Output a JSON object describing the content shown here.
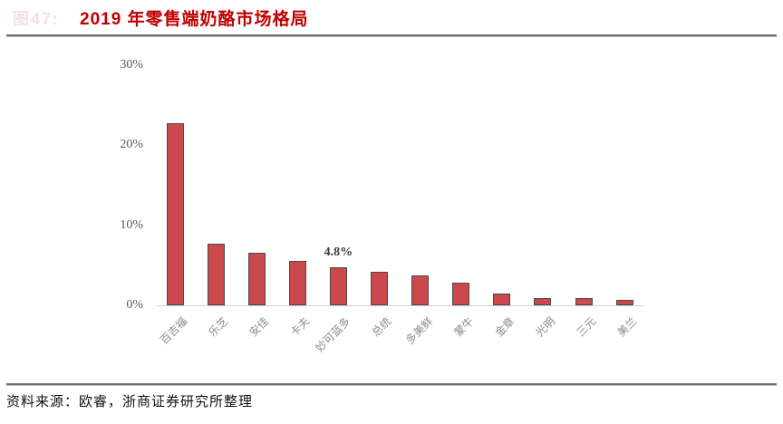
{
  "header": {
    "figure_label": "图47:",
    "title": "2019 年零售端奶酪市场格局"
  },
  "footer": {
    "source": "资料来源：欧睿，浙商证券研究所整理"
  },
  "chart_data": {
    "type": "bar",
    "title": "2019 年零售端奶酪市场格局",
    "categories": [
      "百吉福",
      "乐芝",
      "安佳",
      "卡夫",
      "妙可蓝多",
      "总统",
      "多美鲜",
      "蒙牛",
      "金章",
      "光明",
      "三元",
      "美兰"
    ],
    "values": [
      22.7,
      7.7,
      6.5,
      5.5,
      4.8,
      4.2,
      3.7,
      2.8,
      1.5,
      0.9,
      0.9,
      0.7
    ],
    "unit": "%",
    "data_label": {
      "category_index": 4,
      "text": "4.8%"
    },
    "ylim": [
      0,
      30
    ],
    "yticks": [
      {
        "label": "0%",
        "value": 0
      },
      {
        "label": "10%",
        "value": 10
      },
      {
        "label": "20%",
        "value": 20
      },
      {
        "label": "30%",
        "value": 30
      }
    ],
    "grid": false,
    "legend": "none",
    "colors": {
      "bar_fill": "#CB484D",
      "bar_border": "#4A4A4A",
      "axis_line": "#D0D0D0",
      "tick_text": "#595959",
      "category_text": "#8C8C8C",
      "title_text": "#C00000"
    }
  }
}
